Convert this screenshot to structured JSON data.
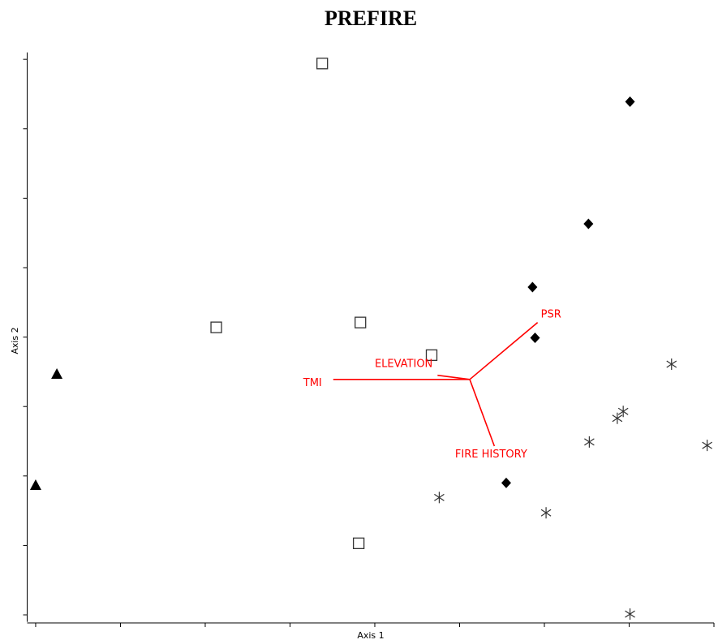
{
  "chart_data": {
    "type": "scatter",
    "title": "PREFIRE",
    "x_label": "Axis 1",
    "y_label": "Axis 2",
    "xlim": [
      -0.1,
      8
    ],
    "ylim": [
      -0.1,
      8.1
    ],
    "xticks": [
      0,
      1,
      2,
      3,
      4,
      5,
      6,
      7,
      8
    ],
    "yticks": [
      0,
      1,
      2,
      3,
      4,
      5,
      6,
      7,
      8
    ],
    "tick_labels": false,
    "series": [
      {
        "marker": "triangle",
        "color": "#000000",
        "x": [
          0.25,
          0.0
        ],
        "values": [
          3.47,
          1.87
        ]
      },
      {
        "marker": "open-square",
        "color": "#333333",
        "x": [
          3.38,
          2.13,
          3.83,
          4.67,
          3.81
        ],
        "values": [
          7.94,
          4.14,
          4.21,
          3.74,
          1.03
        ]
      },
      {
        "marker": "diamond",
        "color": "#000000",
        "x": [
          7.01,
          6.52,
          5.86,
          5.89,
          5.55
        ],
        "values": [
          7.39,
          5.63,
          4.72,
          3.99,
          1.9
        ]
      },
      {
        "marker": "asterisk",
        "color": "#333333",
        "x": [
          7.5,
          6.93,
          6.86,
          6.53,
          7.92,
          4.76,
          6.02,
          7.01
        ],
        "values": [
          3.61,
          2.93,
          2.83,
          2.49,
          2.44,
          1.69,
          1.47,
          0.01
        ]
      }
    ],
    "biplot": {
      "color": "#ff0000",
      "origin": [
        5.12,
        3.39
      ],
      "vectors": [
        {
          "label": "PSR",
          "x": 5.92,
          "y": 4.21
        },
        {
          "label": "ELEVATION",
          "x": 4.74,
          "y": 3.45
        },
        {
          "label": "TMI",
          "x": 3.51,
          "y": 3.39
        },
        {
          "label": "FIRE HISTORY",
          "x": 5.41,
          "y": 2.43
        }
      ]
    }
  }
}
